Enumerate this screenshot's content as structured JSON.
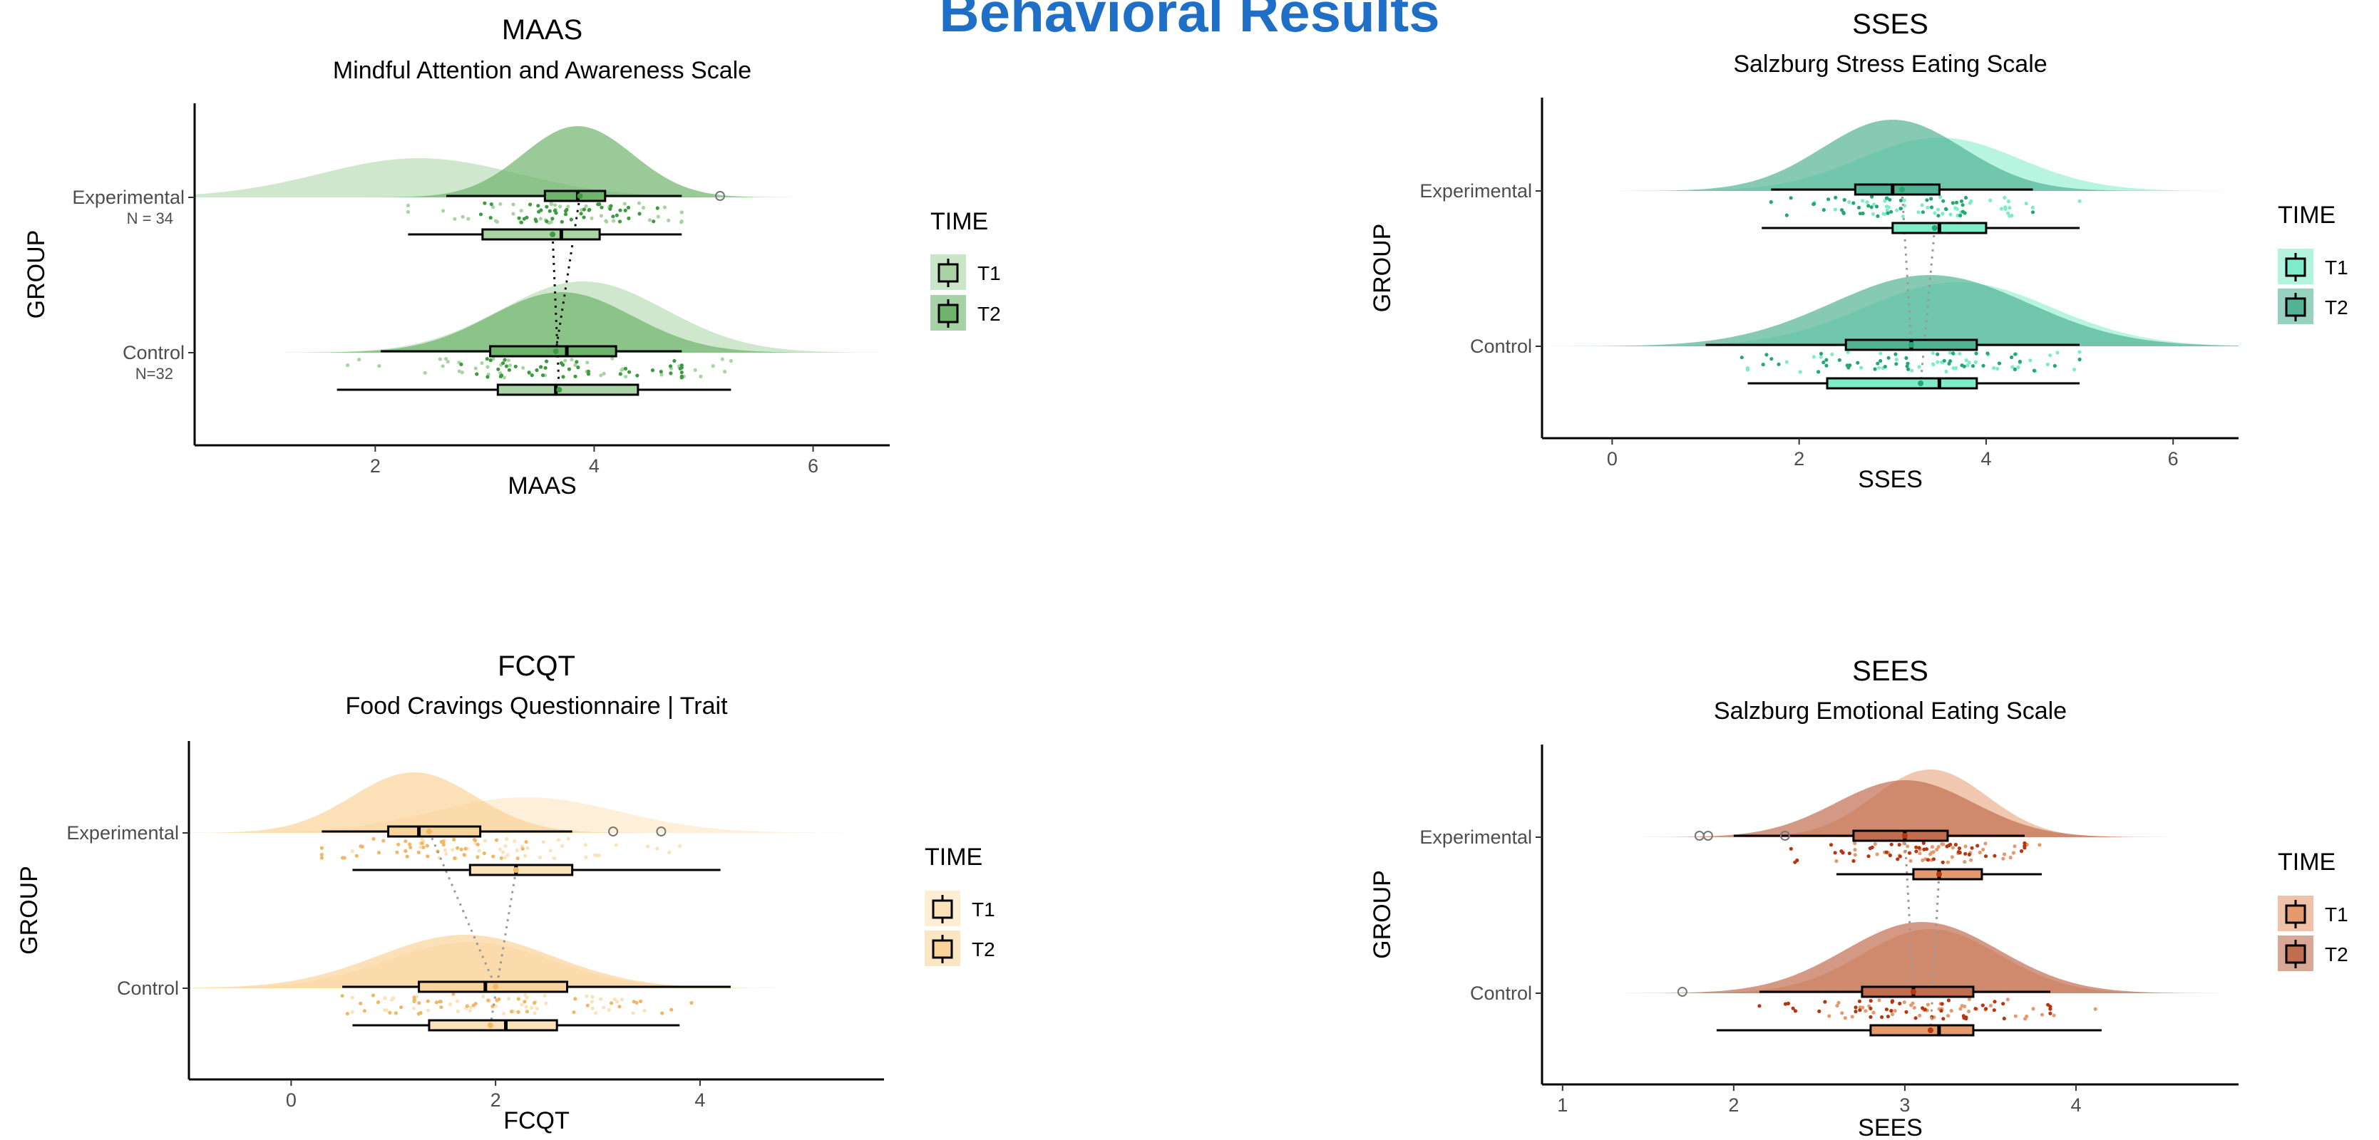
{
  "page": {
    "title": "Behavioral Results"
  },
  "chart_data": [
    {
      "id": "maas",
      "type": "raincloud",
      "title": "MAAS",
      "subtitle": "Mindful Attention and Awareness Scale",
      "xlabel": "MAAS",
      "ylabel": "GROUP",
      "xlim": [
        0.35,
        6.7
      ],
      "xticks": [
        2,
        4,
        6
      ],
      "legend": {
        "title": "TIME",
        "items": [
          "T1",
          "T2"
        ],
        "position": "right"
      },
      "colors": {
        "T1": "#a8d4a4",
        "T2": "#6db36b",
        "dots": "#3e9a3e"
      },
      "groups": [
        {
          "name": "Experimental",
          "n_label": "N = 34",
          "T1": {
            "min": 2.3,
            "q1": 2.98,
            "median": 3.7,
            "q3": 4.05,
            "max": 4.8,
            "mean": 3.62,
            "dist": [
              2.4,
              0.9,
              0.55
            ]
          },
          "T2": {
            "min": 2.65,
            "q1": 3.55,
            "median": 3.85,
            "q3": 4.1,
            "max": 4.8,
            "mean": 3.87,
            "dist": [
              3.85,
              0.5,
              1.0
            ],
            "outliers": [
              5.15
            ]
          }
        },
        {
          "name": "Control",
          "n_label": "N=32",
          "T1": {
            "min": 1.65,
            "q1": 3.12,
            "median": 3.65,
            "q3": 4.4,
            "max": 5.25,
            "mean": 3.68,
            "dist": [
              3.9,
              0.75,
              1.0
            ]
          },
          "T2": {
            "min": 2.05,
            "q1": 3.05,
            "median": 3.75,
            "q3": 4.2,
            "max": 4.8,
            "mean": 3.65,
            "dist": [
              3.7,
              0.65,
              0.85
            ]
          }
        }
      ]
    },
    {
      "id": "sses",
      "type": "raincloud",
      "title": "SSES",
      "subtitle": "Salzburg Stress Eating Scale",
      "xlabel": "SSES",
      "ylabel": "GROUP",
      "xlim": [
        -0.75,
        6.7
      ],
      "xticks": [
        0,
        2,
        4,
        6
      ],
      "legend": {
        "title": "TIME",
        "items": [
          "T1",
          "T2"
        ],
        "position": "right"
      },
      "colors": {
        "T1": "#7eecc8",
        "T2": "#52b394",
        "dots": "#23a870"
      },
      "groups": [
        {
          "name": "Experimental",
          "n_label": "",
          "T1": {
            "min": 1.6,
            "q1": 3.0,
            "median": 3.5,
            "q3": 4.0,
            "max": 5.0,
            "mean": 3.45,
            "dist": [
              3.5,
              0.85,
              0.75
            ]
          },
          "T2": {
            "min": 1.7,
            "q1": 2.6,
            "median": 3.0,
            "q3": 3.5,
            "max": 4.5,
            "mean": 3.1,
            "dist": [
              3.0,
              0.75,
              1.0
            ]
          }
        },
        {
          "name": "Control",
          "n_label": "",
          "T1": {
            "min": 1.45,
            "q1": 2.3,
            "median": 3.5,
            "q3": 3.9,
            "max": 5.0,
            "mean": 3.3,
            "dist": [
              3.7,
              1.0,
              0.9
            ]
          },
          "T2": {
            "min": 1.0,
            "q1": 2.5,
            "median": 3.2,
            "q3": 3.9,
            "max": 5.0,
            "mean": 3.2,
            "dist": [
              3.4,
              1.05,
              1.0
            ]
          }
        }
      ]
    },
    {
      "id": "fcqt",
      "type": "raincloud",
      "title": "FCQT",
      "subtitle": "Food Cravings Questionnaire | Trait",
      "xlabel": "FCQT",
      "ylabel": "GROUP",
      "xlim": [
        -1.0,
        5.8
      ],
      "xticks": [
        0,
        2,
        4
      ],
      "legend": {
        "title": "TIME",
        "items": [
          "T1",
          "T2"
        ],
        "position": "right"
      },
      "colors": {
        "T1": "#fbe2b8",
        "T2": "#f9d39a",
        "dots": "#f0b764"
      },
      "groups": [
        {
          "name": "Experimental",
          "n_label": "",
          "T1": {
            "min": 0.6,
            "q1": 1.75,
            "median": 2.2,
            "q3": 2.75,
            "max": 4.2,
            "mean": 2.2,
            "dist": [
              2.3,
              0.9,
              0.5
            ]
          },
          "T2": {
            "min": 0.3,
            "q1": 0.95,
            "median": 1.25,
            "q3": 1.85,
            "max": 2.75,
            "mean": 1.35,
            "dist": [
              1.2,
              0.6,
              0.85
            ],
            "outliers": [
              3.15,
              3.62
            ]
          }
        },
        {
          "name": "Control",
          "n_label": "",
          "T1": {
            "min": 0.6,
            "q1": 1.35,
            "median": 2.1,
            "q3": 2.6,
            "max": 3.8,
            "mean": 1.95,
            "dist": [
              1.75,
              0.8,
              0.65
            ]
          },
          "T2": {
            "min": 0.5,
            "q1": 1.25,
            "median": 1.9,
            "q3": 2.7,
            "max": 4.3,
            "mean": 2.0,
            "dist": [
              1.7,
              0.85,
              0.75
            ]
          }
        }
      ]
    },
    {
      "id": "sees",
      "type": "raincloud",
      "title": "SEES",
      "subtitle": "Salzburg Emotional Eating Scale",
      "xlabel": "SEES",
      "ylabel": "GROUP",
      "xlim": [
        0.88,
        4.95
      ],
      "xticks": [
        1,
        2,
        3,
        4
      ],
      "legend": {
        "title": "TIME",
        "items": [
          "T1",
          "T2"
        ],
        "position": "right"
      },
      "colors": {
        "T1": "#e59a6e",
        "T2": "#c06d50",
        "dots": "#b5360f"
      },
      "groups": [
        {
          "name": "Experimental",
          "n_label": "",
          "T1": {
            "min": 2.6,
            "q1": 3.05,
            "median": 3.2,
            "q3": 3.45,
            "max": 3.8,
            "mean": 3.2,
            "dist": [
              3.15,
              0.33,
              0.95
            ]
          },
          "T2": {
            "min": 2.0,
            "q1": 2.7,
            "median": 3.0,
            "q3": 3.25,
            "max": 3.7,
            "mean": 3.0,
            "dist": [
              3.0,
              0.4,
              0.8
            ],
            "outliers": [
              1.8,
              1.85,
              2.3
            ]
          }
        },
        {
          "name": "Control",
          "n_label": "",
          "T1": {
            "min": 1.9,
            "q1": 2.8,
            "median": 3.2,
            "q3": 3.4,
            "max": 4.15,
            "mean": 3.15,
            "dist": [
              3.15,
              0.4,
              0.9
            ]
          },
          "T2": {
            "min": 2.15,
            "q1": 2.75,
            "median": 3.05,
            "q3": 3.4,
            "max": 3.85,
            "mean": 3.05,
            "dist": [
              3.1,
              0.45,
              1.0
            ],
            "outliers": [
              1.7
            ]
          }
        }
      ]
    }
  ]
}
